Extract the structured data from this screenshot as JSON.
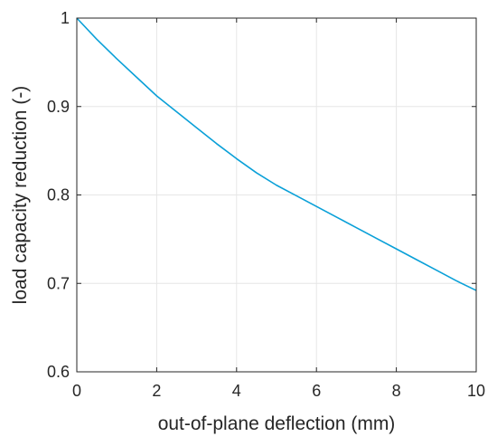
{
  "chart_data": {
    "type": "line",
    "title": "",
    "xlabel": "out-of-plane deflection (mm)",
    "ylabel": "load capacity reduction (-)",
    "xlim": [
      0,
      10
    ],
    "ylim": [
      0.6,
      1
    ],
    "xticks": [
      0,
      2,
      4,
      6,
      8,
      10
    ],
    "yticks": [
      0.6,
      0.7,
      0.8,
      0.9,
      1
    ],
    "xtick_labels": [
      "0",
      "2",
      "4",
      "6",
      "8",
      "10"
    ],
    "ytick_labels": [
      "0.6",
      "0.7",
      "0.8",
      "0.9",
      "1"
    ],
    "grid": true,
    "series": [
      {
        "color": "#0aa0d8",
        "x": [
          0,
          0.5,
          1,
          1.5,
          2,
          2.5,
          3,
          3.5,
          4,
          4.5,
          5,
          5.5,
          6,
          6.5,
          7,
          7.5,
          8,
          8.5,
          9,
          9.5,
          10
        ],
        "y": [
          1.0,
          0.976,
          0.954,
          0.933,
          0.912,
          0.894,
          0.876,
          0.858,
          0.841,
          0.825,
          0.811,
          0.799,
          0.787,
          0.775,
          0.763,
          0.751,
          0.739,
          0.727,
          0.715,
          0.703,
          0.692
        ]
      }
    ]
  }
}
